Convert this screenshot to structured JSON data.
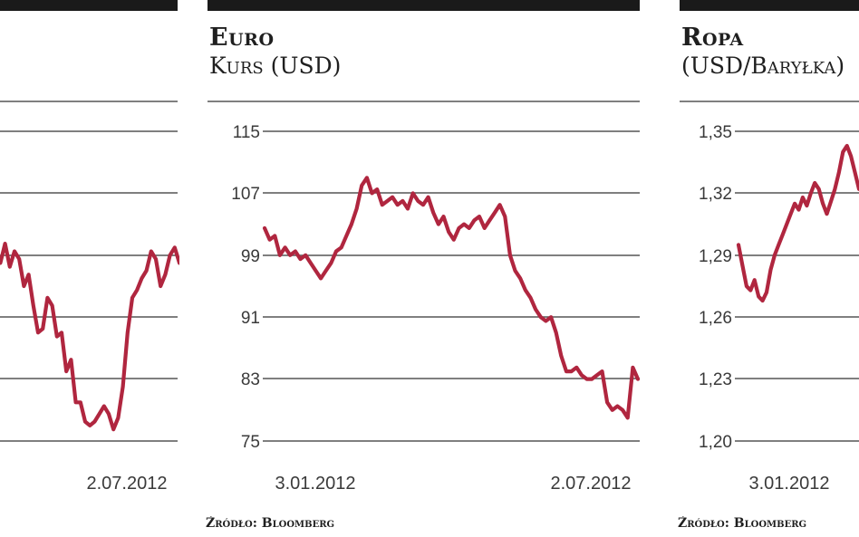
{
  "colors": {
    "line": "#b0263f",
    "grid": "#555555",
    "bar": "#1a1a1a"
  },
  "chart_data": [
    {
      "type": "line",
      "title": "",
      "subtitle": "",
      "x_labels": [
        "",
        "2.07.2012"
      ],
      "yticks": [],
      "ylim": [
        75,
        115
      ],
      "source": "",
      "series": [
        {
          "values": [
            104,
            99.5,
            98,
            100.5,
            97.5,
            99.5,
            98.5,
            95,
            96.5,
            92.5,
            89,
            89.5,
            93.5,
            92.5,
            88.5,
            89,
            84,
            85.5,
            80,
            80,
            77.5,
            77,
            77.5,
            78.5,
            79.5,
            78.5,
            76.5,
            78,
            82,
            89,
            93.5,
            94.5,
            96,
            97,
            99.5,
            98.5,
            95,
            96.5,
            99,
            100,
            98
          ]
        }
      ]
    },
    {
      "type": "line",
      "title": "Euro",
      "subtitle": "Kurs (USD)",
      "x_labels": [
        "3.01.2012",
        "2.07.2012"
      ],
      "yticks": [
        "115",
        "107",
        "99",
        "91",
        "83",
        "75"
      ],
      "ylim": [
        75,
        115
      ],
      "source": "Źródło: Bloomberg",
      "series": [
        {
          "values": [
            102.5,
            101,
            101.5,
            99,
            100,
            99,
            99.5,
            98.5,
            99,
            98,
            97,
            96,
            97,
            98,
            99.5,
            100,
            101.5,
            103,
            105,
            108,
            109,
            107,
            107.5,
            105.5,
            106,
            106.5,
            105.5,
            106,
            105,
            107,
            106,
            105.5,
            106.5,
            104.5,
            103,
            104,
            102,
            101,
            102.5,
            103,
            102.5,
            103.5,
            104,
            102.5,
            103.5,
            104.5,
            105.5,
            104,
            99,
            97,
            96,
            94.5,
            93.5,
            92,
            91,
            90.5,
            91,
            89,
            86,
            84,
            84,
            84.5,
            83.5,
            83,
            83,
            83.5,
            84,
            80,
            79,
            79.5,
            79,
            78,
            84.5,
            83
          ]
        }
      ]
    },
    {
      "type": "line",
      "title": "Ropa",
      "subtitle": "(USD/Baryłka)",
      "x_labels": [
        "3.01.2012",
        ""
      ],
      "yticks": [
        "1,35",
        "1,32",
        "1,29",
        "1,26",
        "1,23",
        "1,20"
      ],
      "ylim": [
        1.2,
        1.35
      ],
      "source": "Źródło: Bloomberg",
      "series": [
        {
          "values": [
            1.295,
            1.285,
            1.275,
            1.273,
            1.278,
            1.27,
            1.268,
            1.272,
            1.283,
            1.29,
            1.295,
            1.3,
            1.305,
            1.31,
            1.315,
            1.312,
            1.318,
            1.314,
            1.32,
            1.325,
            1.322,
            1.315,
            1.31,
            1.316,
            1.322,
            1.33,
            1.34,
            1.343,
            1.338,
            1.33,
            1.322
          ]
        }
      ]
    }
  ]
}
